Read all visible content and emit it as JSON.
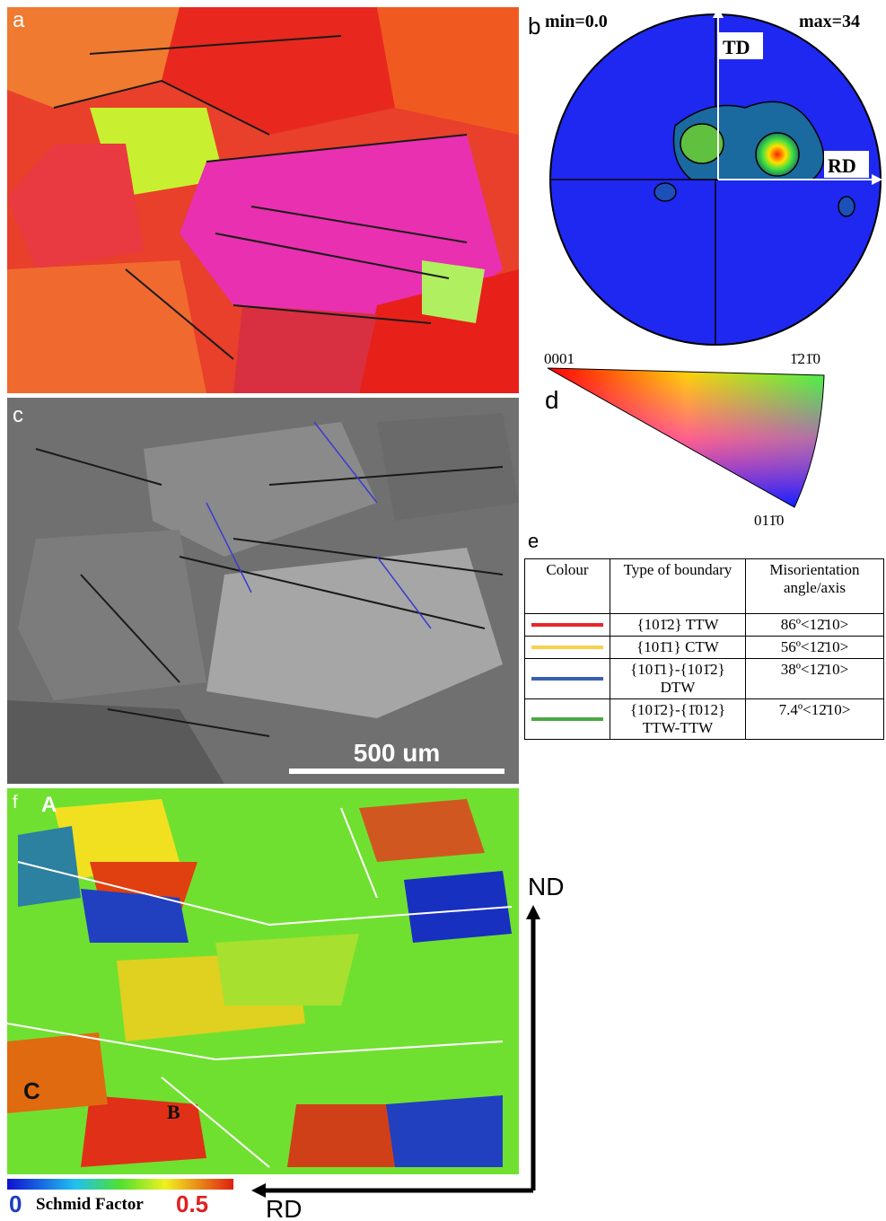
{
  "panels": {
    "a": {
      "label": "a"
    },
    "b": {
      "label": "b",
      "min": "min=0.0",
      "max": "max=34",
      "td": "TD",
      "rd": "RD"
    },
    "c": {
      "label": "c",
      "scale_bar": "500 um"
    },
    "d": {
      "label": "d",
      "corner_top_left": "0001",
      "corner_top_right": "1̄21̄0",
      "corner_bottom": "011̄0"
    },
    "e": {
      "label": "e",
      "table": {
        "headers": [
          "Colour",
          "Type of boundary",
          "Misorientation angle/axis"
        ],
        "rows": [
          {
            "colour": "#e8262a",
            "type": "{101̄2} TTW",
            "angle": "86º<12̄10>"
          },
          {
            "colour": "#f7d24e",
            "type": "{101̄1} CTW",
            "angle": "56º<12̄10>"
          },
          {
            "colour": "#3a5fb0",
            "type": "{101̄1}-{101̄2} DTW",
            "angle": "38º<12̄10>"
          },
          {
            "colour": "#4aa843",
            "type": "{101̄2}-{1̄012} TTW-TTW",
            "angle": "7.4º<12̄10>"
          }
        ]
      }
    },
    "f": {
      "label": "f",
      "point_a": "A",
      "point_b": "B",
      "point_c": "C",
      "colorbar_min": "0",
      "colorbar_title": "Schmid Factor",
      "colorbar_max": "0.5",
      "axis_vertical": "ND",
      "axis_horizontal": "RD"
    }
  }
}
